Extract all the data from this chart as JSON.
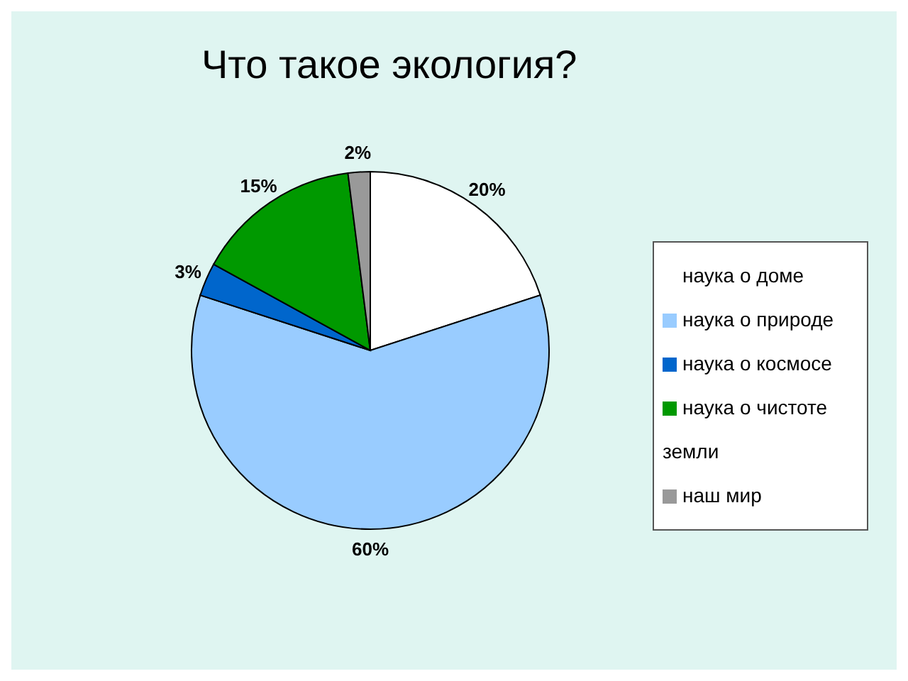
{
  "chart_data": {
    "type": "pie",
    "title": "Что такое экология?",
    "categories": [
      "наука о доме",
      "наука о природе",
      "наука о космосе",
      "наука о чистоте земли",
      "наш мир"
    ],
    "values": [
      20,
      60,
      3,
      15,
      2
    ],
    "colors": [
      "#ffffff",
      "#99ccff",
      "#0066cc",
      "#009900",
      "#999999"
    ],
    "value_labels": [
      "20%",
      "60%",
      "3%",
      "15%",
      "2%"
    ],
    "legend": "right"
  }
}
